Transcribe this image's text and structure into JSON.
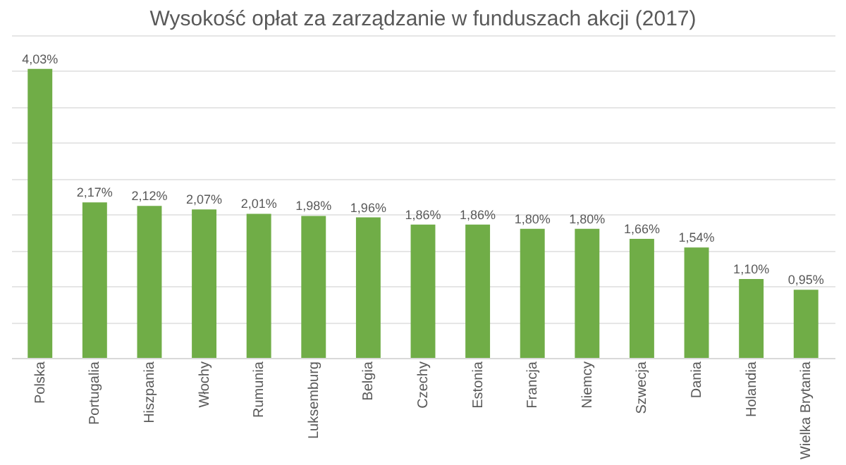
{
  "chart_data": {
    "type": "bar",
    "title": "Wysokość opłat za zarządzanie w funduszach akcji (2017)",
    "categories": [
      "Polska",
      "Portugalia",
      "Hiszpania",
      "Włochy",
      "Rumunia",
      "Luksemburg",
      "Belgia",
      "Czechy",
      "Estonia",
      "Francja",
      "Niemcy",
      "Szwecja",
      "Dania",
      "Holandia",
      "Wielka Brytania"
    ],
    "values": [
      4.03,
      2.17,
      2.12,
      2.07,
      2.01,
      1.98,
      1.96,
      1.86,
      1.86,
      1.8,
      1.8,
      1.66,
      1.54,
      1.1,
      0.95
    ],
    "value_labels": [
      "4,03%",
      "2,17%",
      "2,12%",
      "2,07%",
      "2,01%",
      "1,98%",
      "1,96%",
      "1,86%",
      "1,86%",
      "1,80%",
      "1,80%",
      "1,66%",
      "1,54%",
      "1,10%",
      "0,95%"
    ],
    "color": "#70ad47",
    "grid": "y",
    "tick_labels": "x"
  }
}
